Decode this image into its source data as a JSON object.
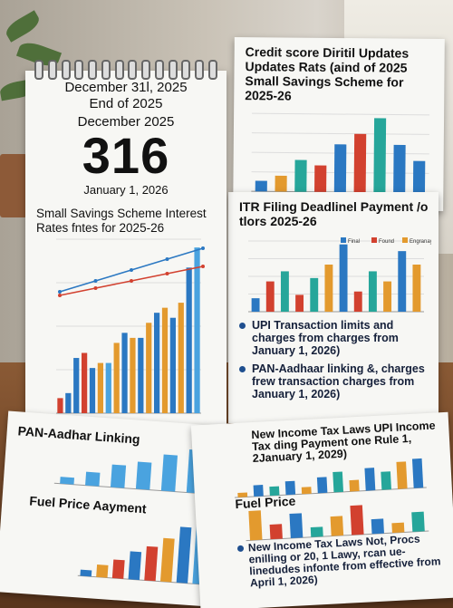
{
  "calendar": {
    "line1": "December 31l, 2025",
    "line2": "End of 2025",
    "line3": "December 2025",
    "big_number": "316",
    "line4": "January 1, 2026",
    "chart_title": "Small Savings Scheme Interest Rates fntes for 2025-26"
  },
  "poster_top": {
    "title": "Credit score Diritil Updates Updates Rats (aind of 2025 Small Savings Scheme for 2025-26"
  },
  "poster_bottom": {
    "title": "ITR Filing Deadlinel Payment /o tlors 2025-26",
    "legend": [
      "Final",
      "Found",
      "Engranay"
    ],
    "bullet1": "UPI Transaction limits and charges from charges from January 1, 2026)",
    "bullet2": "PAN-Aadhaar linking &, charges frew transaction charges from January 1, 2026)"
  },
  "sheet_left": {
    "title1": "PAN-Aadhar Linking",
    "title2": "Fuel Price Aayment"
  },
  "sheet_right": {
    "title1": "New Income Tax Laws UPI Income Tax ding Payment one Rule 1, 2January 1, 2029)",
    "title2": "Fuel Price",
    "bullet": "New Income Tax Laws Not, Procs enilling or 20, 1 Lawy, rcan ue-linedudes infonte from effective from April 1, 2026)"
  },
  "colors": {
    "blue": "#2b78c2",
    "orange": "#e39a2e",
    "red": "#d2412f",
    "teal": "#26a69a",
    "light_blue": "#4aa3df"
  },
  "chart_data": [
    {
      "type": "bar",
      "name_hint": "calendar-chart",
      "values": [
        3,
        4,
        11,
        12,
        9,
        10,
        10,
        14,
        16,
        15,
        15,
        18,
        20,
        21,
        19,
        22,
        29,
        33
      ],
      "line_blue": [
        10,
        13,
        16,
        19,
        22
      ],
      "line_red": [
        9,
        11,
        13,
        15,
        17
      ]
    },
    {
      "type": "bar",
      "name_hint": "poster-top-chart",
      "values": [
        2,
        3,
        6,
        5,
        9,
        11,
        14,
        9,
        6
      ]
    },
    {
      "type": "bar",
      "name_hint": "poster-bottom-chart",
      "values": [
        4,
        9,
        12,
        5,
        10,
        14,
        20,
        6,
        12,
        9,
        18,
        14
      ]
    }
  ]
}
